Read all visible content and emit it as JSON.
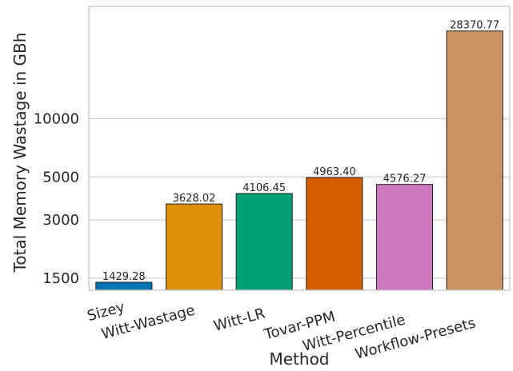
{
  "chart_data": {
    "type": "bar",
    "xlabel": "Method",
    "ylabel": "Total Memory Wastage in GBh",
    "yscale": "log",
    "ylim": [
      1300,
      38000
    ],
    "yticks": [
      1500,
      3000,
      5000,
      10000
    ],
    "ytick_labels": [
      "1500",
      "3000",
      "5000",
      "10000"
    ],
    "grid": "y",
    "categories": [
      "Sizey",
      "Witt-Wastage",
      "Witt-LR",
      "Tovar-PPM",
      "Witt-Percentile",
      "Workflow-Presets"
    ],
    "values": [
      1429.28,
      3628.02,
      4106.45,
      4963.4,
      4576.27,
      28370.77
    ],
    "value_labels": [
      "1429.28",
      "3628.02",
      "4106.45",
      "4963.40",
      "4576.27",
      "28370.77"
    ],
    "colors": [
      "#0173b2",
      "#de8f05",
      "#029e73",
      "#d55e00",
      "#cc78bc",
      "#ca9161"
    ]
  }
}
